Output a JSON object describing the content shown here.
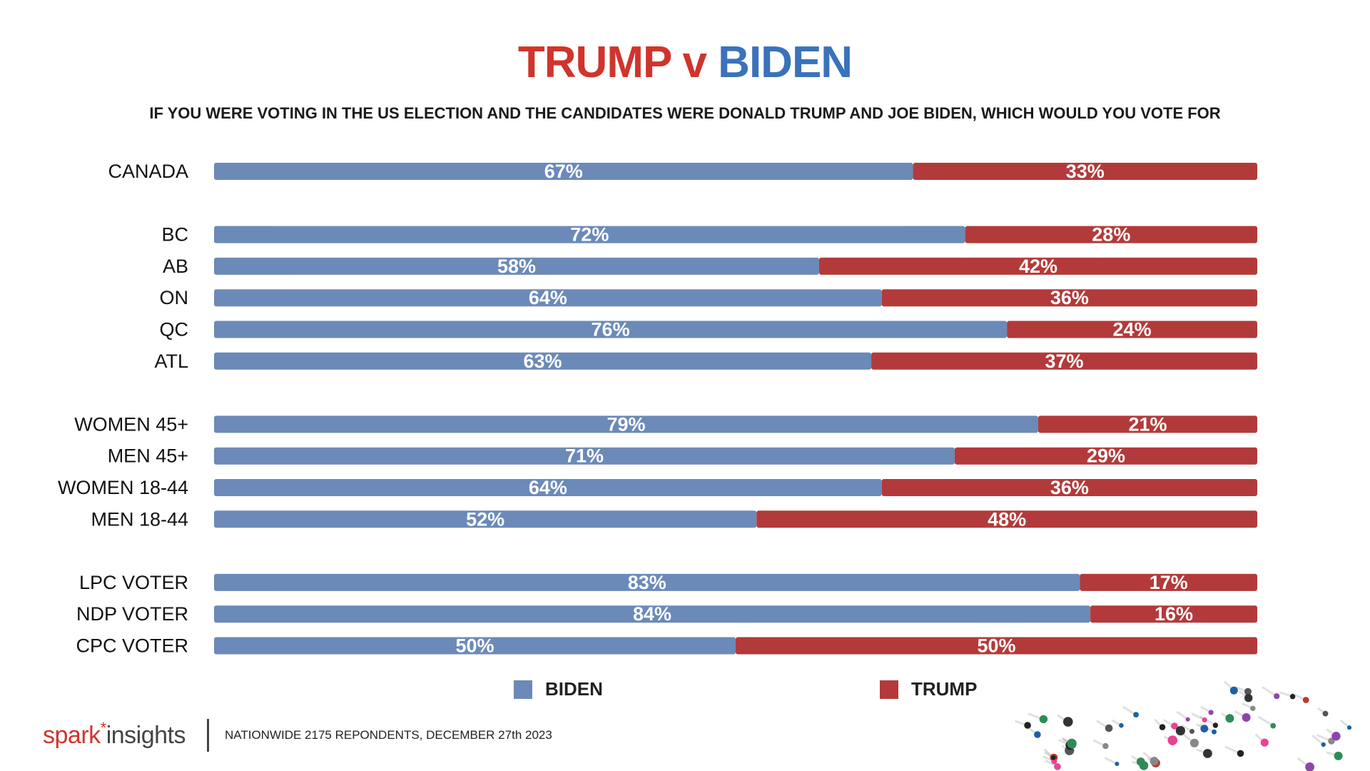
{
  "title": {
    "part1": "TRUMP",
    "connector": "v",
    "part2": "BIDEN"
  },
  "subtitle": "IF YOU WERE VOTING IN THE US ELECTION AND THE CANDIDATES WERE DONALD TRUMP AND JOE BIDEN, WHICH WOULD YOU VOTE FOR",
  "colors": {
    "biden": "#6b8ab8",
    "trump": "#b33a3a",
    "title_trump": "#d0342c",
    "title_biden": "#3a72bb"
  },
  "chart_data": {
    "type": "bar",
    "orientation": "horizontal",
    "stacked": true,
    "percent_scale": true,
    "groups": [
      [
        "CANADA"
      ],
      [
        "BC",
        "AB",
        "ON",
        "QC",
        "ATL"
      ],
      [
        "WOMEN 45+",
        "MEN 45+",
        "WOMEN 18-44",
        "MEN 18-44"
      ],
      [
        "LPC VOTER",
        "NDP VOTER",
        "CPC VOTER"
      ]
    ],
    "categories": [
      "CANADA",
      "BC",
      "AB",
      "ON",
      "QC",
      "ATL",
      "WOMEN 45+",
      "MEN 45+",
      "WOMEN 18-44",
      "MEN 18-44",
      "LPC VOTER",
      "NDP VOTER",
      "CPC VOTER"
    ],
    "series": [
      {
        "name": "BIDEN",
        "values": [
          67,
          72,
          58,
          64,
          76,
          63,
          79,
          71,
          64,
          52,
          83,
          84,
          50
        ]
      },
      {
        "name": "TRUMP",
        "values": [
          33,
          28,
          42,
          36,
          24,
          37,
          21,
          29,
          36,
          48,
          17,
          16,
          50
        ]
      }
    ],
    "value_suffix": "%",
    "legend_position": "bottom"
  },
  "legend": {
    "biden": "BIDEN",
    "trump": "TRUMP"
  },
  "footer": {
    "logo_part1": "spark",
    "logo_star": "*",
    "logo_part2": "insights",
    "note": "NATIONWIDE 2175 REPONDENTS, DECEMBER 27th 2023"
  }
}
